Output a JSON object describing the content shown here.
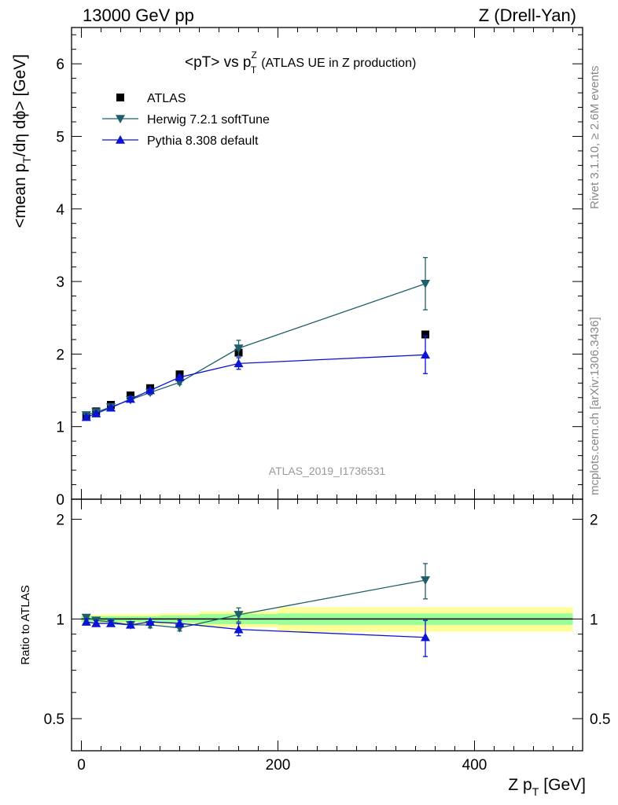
{
  "header": {
    "left": "13000 GeV pp",
    "right": "Z (Drell-Yan)"
  },
  "side_labels": {
    "rivet": "Rivet 3.1.10, ≥ 2.6M events",
    "mcplots": "mcplots.cern.ch [arXiv:1306.3436]"
  },
  "watermark": "ATLAS_2019_I1736531",
  "chart_data": [
    {
      "type": "scatter",
      "title_parts": {
        "a": "<pT> vs p",
        "sup": "Z",
        "sub": "T",
        "b": "(ATLAS UE in Z production)"
      },
      "ylabel_parts": {
        "a": "<mean p",
        "sub": "T",
        "b": "/dη dϕ> [GeV]"
      },
      "ylim": [
        0,
        6.5
      ],
      "xlim": [
        -10,
        510
      ],
      "y_ticks": [
        "0",
        "1",
        "2",
        "3",
        "4",
        "5",
        "6"
      ],
      "legend_placement": "top-left",
      "colors": {
        "atlas": "#000000",
        "herwig": "#1f5f6b",
        "pythia": "#0a14d2"
      },
      "series": [
        {
          "name": "ATLAS",
          "marker": "square",
          "points": [
            {
              "x": 5,
              "y": 1.15
            },
            {
              "x": 15,
              "y": 1.21
            },
            {
              "x": 30,
              "y": 1.3
            },
            {
              "x": 50,
              "y": 1.43
            },
            {
              "x": 70,
              "y": 1.53
            },
            {
              "x": 100,
              "y": 1.72
            },
            {
              "x": 160,
              "y": 2.02
            },
            {
              "x": 350,
              "y": 2.27
            }
          ]
        },
        {
          "name": "Herwig 7.2.1 softTune",
          "marker": "triangle-down",
          "points": [
            {
              "x": 5,
              "y": 1.16,
              "err": 0.02
            },
            {
              "x": 15,
              "y": 1.2,
              "err": 0.02
            },
            {
              "x": 30,
              "y": 1.27,
              "err": 0.02
            },
            {
              "x": 50,
              "y": 1.37,
              "err": 0.02
            },
            {
              "x": 70,
              "y": 1.47,
              "err": 0.03
            },
            {
              "x": 100,
              "y": 1.61,
              "err": 0.03
            },
            {
              "x": 160,
              "y": 2.08,
              "err": 0.11
            },
            {
              "x": 350,
              "y": 2.97,
              "err": 0.36
            }
          ]
        },
        {
          "name": "Pythia 8.308 default",
          "marker": "triangle-up",
          "points": [
            {
              "x": 5,
              "y": 1.13,
              "err": 0.02
            },
            {
              "x": 15,
              "y": 1.18,
              "err": 0.02
            },
            {
              "x": 30,
              "y": 1.26,
              "err": 0.02
            },
            {
              "x": 50,
              "y": 1.38,
              "err": 0.02
            },
            {
              "x": 70,
              "y": 1.5,
              "err": 0.02
            },
            {
              "x": 100,
              "y": 1.68,
              "err": 0.03
            },
            {
              "x": 160,
              "y": 1.87,
              "err": 0.08
            },
            {
              "x": 350,
              "y": 1.99,
              "err": 0.26
            }
          ]
        }
      ]
    },
    {
      "type": "scatter",
      "ylabel": "Ratio to ATLAS",
      "xlabel_parts": {
        "a": "Z p",
        "sub": "T",
        "b": "[GeV]"
      },
      "y_scale": "log",
      "ylim": [
        0.4,
        2.3
      ],
      "xlim": [
        -10,
        510
      ],
      "y_ticks": [
        {
          "value": 0.5,
          "label": "0.5"
        },
        {
          "value": 1,
          "label": "1"
        },
        {
          "value": 2,
          "label": "2"
        }
      ],
      "x_ticks": [
        {
          "value": 0,
          "label": "0"
        },
        {
          "value": 200,
          "label": "200"
        },
        {
          "value": 400,
          "label": "400"
        }
      ],
      "bands": [
        {
          "x0": 0,
          "x1": 10,
          "stat": 0.02,
          "total": 0.03
        },
        {
          "x0": 10,
          "x1": 20,
          "stat": 0.02,
          "total": 0.03
        },
        {
          "x0": 20,
          "x1": 40,
          "stat": 0.02,
          "total": 0.035
        },
        {
          "x0": 40,
          "x1": 60,
          "stat": 0.02,
          "total": 0.035
        },
        {
          "x0": 60,
          "x1": 80,
          "stat": 0.02,
          "total": 0.035
        },
        {
          "x0": 80,
          "x1": 120,
          "stat": 0.025,
          "total": 0.04
        },
        {
          "x0": 120,
          "x1": 200,
          "stat": 0.035,
          "total": 0.055
        },
        {
          "x0": 200,
          "x1": 500,
          "stat": 0.04,
          "total": 0.085
        }
      ],
      "series": [
        {
          "name": "Herwig 7.2.1 softTune",
          "marker": "triangle-down",
          "points": [
            {
              "x": 5,
              "y": 1.01,
              "err": 0.02
            },
            {
              "x": 15,
              "y": 0.99,
              "err": 0.02
            },
            {
              "x": 30,
              "y": 0.98,
              "err": 0.02
            },
            {
              "x": 50,
              "y": 0.96,
              "err": 0.02
            },
            {
              "x": 70,
              "y": 0.96,
              "err": 0.02
            },
            {
              "x": 100,
              "y": 0.94,
              "err": 0.02
            },
            {
              "x": 160,
              "y": 1.03,
              "err": 0.05
            },
            {
              "x": 350,
              "y": 1.31,
              "err": 0.16
            }
          ]
        },
        {
          "name": "Pythia 8.308 default",
          "marker": "triangle-up",
          "points": [
            {
              "x": 5,
              "y": 0.98,
              "err": 0.02
            },
            {
              "x": 15,
              "y": 0.97,
              "err": 0.02
            },
            {
              "x": 30,
              "y": 0.97,
              "err": 0.02
            },
            {
              "x": 50,
              "y": 0.96,
              "err": 0.02
            },
            {
              "x": 70,
              "y": 0.98,
              "err": 0.02
            },
            {
              "x": 100,
              "y": 0.97,
              "err": 0.02
            },
            {
              "x": 160,
              "y": 0.93,
              "err": 0.04
            },
            {
              "x": 350,
              "y": 0.88,
              "err": 0.11
            }
          ]
        }
      ]
    }
  ]
}
